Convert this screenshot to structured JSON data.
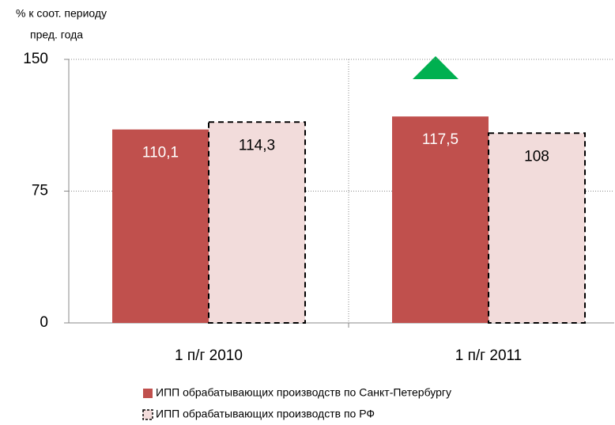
{
  "chart_data": {
    "type": "bar",
    "y_label": [
      "% к соот. периоду",
      "пред. года"
    ],
    "categories": [
      "1 п/г 2010",
      "1 п/г 2011"
    ],
    "series": [
      {
        "name": "ИПП обрабатывающих производств по Санкт-Петербургу",
        "color": "#c0504d",
        "values": [
          110.1,
          117.5
        ],
        "value_labels": [
          "110,1",
          "117,5"
        ]
      },
      {
        "name": "ИПП обрабатывающих производств по РФ",
        "color": "#f2dcdb",
        "values": [
          114.3,
          108
        ],
        "value_labels": [
          "114,3",
          "108"
        ]
      }
    ],
    "ylim": [
      0,
      150
    ],
    "yticks": [
      0,
      75,
      150
    ],
    "grid": true
  }
}
